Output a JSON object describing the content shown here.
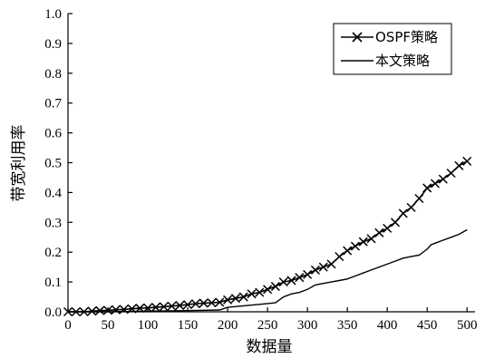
{
  "chart_data": {
    "type": "line",
    "xlabel": "数据量",
    "ylabel": "带宽利用率",
    "xlim": [
      0,
      510
    ],
    "ylim": [
      0,
      1.0
    ],
    "x_ticks": [
      0,
      50,
      100,
      150,
      200,
      250,
      300,
      350,
      400,
      450,
      500
    ],
    "y_ticks": [
      0.0,
      0.1,
      0.2,
      0.3,
      0.4,
      0.5,
      0.6,
      0.7,
      0.8,
      0.9,
      1.0
    ],
    "y_tick_labels": [
      "0.0",
      "0.1",
      "0.2",
      "0.3",
      "0.4",
      "0.5",
      "0.6",
      "0.7",
      "0.8",
      "0.9",
      "1.0"
    ],
    "legend_position": "top-right",
    "series": [
      {
        "name": "OSPF策略",
        "marker": "x",
        "x": [
          0,
          10,
          20,
          30,
          40,
          50,
          60,
          70,
          80,
          90,
          100,
          110,
          120,
          130,
          140,
          150,
          160,
          170,
          180,
          190,
          200,
          210,
          220,
          230,
          240,
          250,
          260,
          270,
          280,
          290,
          300,
          310,
          320,
          330,
          340,
          350,
          360,
          370,
          380,
          390,
          400,
          410,
          420,
          430,
          440,
          450,
          460,
          470,
          480,
          490,
          500
        ],
        "values": [
          0.0,
          0.0,
          0.0,
          0.002,
          0.004,
          0.005,
          0.007,
          0.008,
          0.01,
          0.012,
          0.013,
          0.015,
          0.017,
          0.019,
          0.021,
          0.024,
          0.027,
          0.029,
          0.03,
          0.032,
          0.04,
          0.045,
          0.05,
          0.06,
          0.065,
          0.075,
          0.085,
          0.1,
          0.105,
          0.115,
          0.125,
          0.14,
          0.15,
          0.16,
          0.185,
          0.205,
          0.22,
          0.235,
          0.245,
          0.265,
          0.28,
          0.3,
          0.33,
          0.35,
          0.38,
          0.415,
          0.43,
          0.445,
          0.465,
          0.49,
          0.505
        ]
      },
      {
        "name": "本文策略",
        "marker": "none",
        "x": [
          0,
          50,
          100,
          150,
          190,
          200,
          220,
          240,
          260,
          265,
          270,
          280,
          290,
          300,
          310,
          320,
          330,
          340,
          350,
          360,
          370,
          380,
          390,
          400,
          410,
          420,
          430,
          440,
          450,
          455,
          460,
          470,
          480,
          490,
          500
        ],
        "values": [
          0.0,
          0.0,
          0.002,
          0.004,
          0.006,
          0.015,
          0.02,
          0.025,
          0.03,
          0.04,
          0.05,
          0.06,
          0.065,
          0.075,
          0.09,
          0.095,
          0.1,
          0.105,
          0.11,
          0.12,
          0.13,
          0.14,
          0.15,
          0.16,
          0.17,
          0.18,
          0.185,
          0.19,
          0.21,
          0.225,
          0.23,
          0.24,
          0.25,
          0.26,
          0.275
        ]
      }
    ]
  }
}
